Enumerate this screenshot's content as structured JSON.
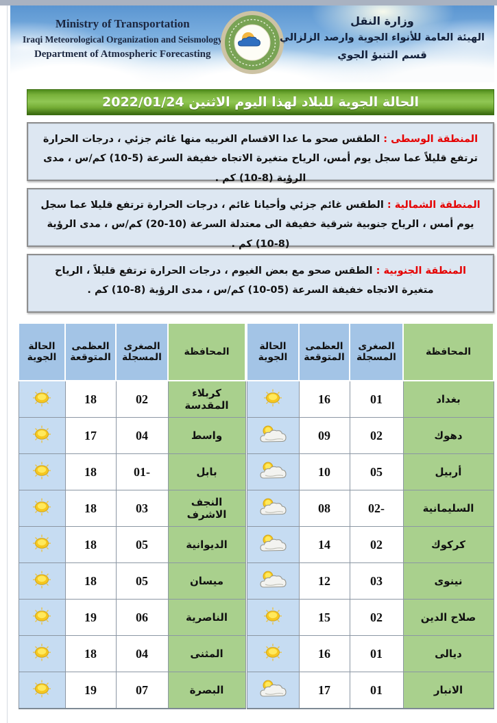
{
  "header": {
    "en_lines": {
      "l1": "Ministry of Transportation",
      "l2": "Iraqi Meteorological Organization and Seismology",
      "l3": "Department of Atmospheric Forecasting"
    },
    "ar_lines": {
      "l1": "وزارة النقل",
      "l2": "الهيئة العامة للأنواء الجوية وارصد الزلزالي",
      "l3": "قسم التنبؤ الجوي"
    },
    "logo": "iraqi-meteorological-organization-logo"
  },
  "title_bar": {
    "text": "الحالة الجوية للبلاد لهذا اليوم الاثنين 2022/01/24"
  },
  "regions": [
    {
      "name": "المنطقة الوسطى :",
      "text": "الطقس صحو ما عدا الاقسام الغربيه منها غائم جزئي ، درجات الحرارة ترتفع قليلاً عما سجل يوم أمس، الرياح متغيرة الاتجاه خفيفة السرعة (5-10) كم/س ، مدى الرؤية (8-10) كم ."
    },
    {
      "name": "المنطقة الشمالية :",
      "text": "الطقس غائم جزئي وأحيانا غائم ، درجات الحرارة ترتفع قليلا عما سجل يوم أمس ، الرياح جنوبية شرقية خفيفة الى معتدلة السرعة (10-20) كم/س ، مدى الرؤية (8-10) كم ."
    },
    {
      "name": "المنطقة الجنوبية :",
      "text": "الطقس صحو مع بعض الغيوم ، درجات الحرارة ترتفع قليلاً ، الرياح متغيرة الاتجاه خفيفة السرعة (05-10) كم/س ، مدى الرؤية (8-10) كم ."
    }
  ],
  "table": {
    "columns": {
      "governorate": "المحافظة",
      "min_recorded": "الصغرى المسجلة",
      "max_expected": "العظمى المتوقعة",
      "condition": "الحالة الجوية"
    },
    "right_rows": [
      {
        "governorate": "بغداد",
        "min": "01",
        "max": "16",
        "icon": "sunny-icon"
      },
      {
        "governorate": "دهوك",
        "min": "02",
        "max": "09",
        "icon": "partly-cloudy-icon"
      },
      {
        "governorate": "أربيل",
        "min": "05",
        "max": "10",
        "icon": "partly-cloudy-icon"
      },
      {
        "governorate": "السليمانية",
        "min": "-02",
        "max": "08",
        "icon": "partly-cloudy-icon"
      },
      {
        "governorate": "كركوك",
        "min": "02",
        "max": "14",
        "icon": "partly-cloudy-icon"
      },
      {
        "governorate": "نينوى",
        "min": "03",
        "max": "12",
        "icon": "partly-cloudy-icon"
      },
      {
        "governorate": "صلاح الدين",
        "min": "02",
        "max": "15",
        "icon": "sunny-icon"
      },
      {
        "governorate": "ديالى",
        "min": "01",
        "max": "16",
        "icon": "sunny-icon"
      },
      {
        "governorate": "الانبار",
        "min": "01",
        "max": "17",
        "icon": "partly-cloudy-icon"
      }
    ],
    "left_rows": [
      {
        "governorate": "كربلاء المقدسة",
        "min": "02",
        "max": "18",
        "icon": "sunny-icon"
      },
      {
        "governorate": "واسط",
        "min": "04",
        "max": "17",
        "icon": "sunny-icon"
      },
      {
        "governorate": "بابل",
        "min": "-01",
        "max": "18",
        "icon": "sunny-icon"
      },
      {
        "governorate": "النجف الاشرف",
        "min": "03",
        "max": "18",
        "icon": "sunny-icon"
      },
      {
        "governorate": "الديوانية",
        "min": "05",
        "max": "18",
        "icon": "sunny-icon"
      },
      {
        "governorate": "ميسان",
        "min": "05",
        "max": "18",
        "icon": "sunny-icon"
      },
      {
        "governorate": "الناصرية",
        "min": "06",
        "max": "19",
        "icon": "sunny-icon"
      },
      {
        "governorate": "المثنى",
        "min": "04",
        "max": "18",
        "icon": "sunny-icon"
      },
      {
        "governorate": "البصرة",
        "min": "07",
        "max": "19",
        "icon": "sunny-icon"
      }
    ]
  },
  "colors": {
    "title_bar_green": "#74ac35",
    "header_blue": "#a3c4e6",
    "header_green": "#a9d08d",
    "icon_cell_blue": "#c6dcf2",
    "region_box_bg": "#dde7f2",
    "region_label_red": "#e50000",
    "sky_blue": "#5a95d1"
  }
}
